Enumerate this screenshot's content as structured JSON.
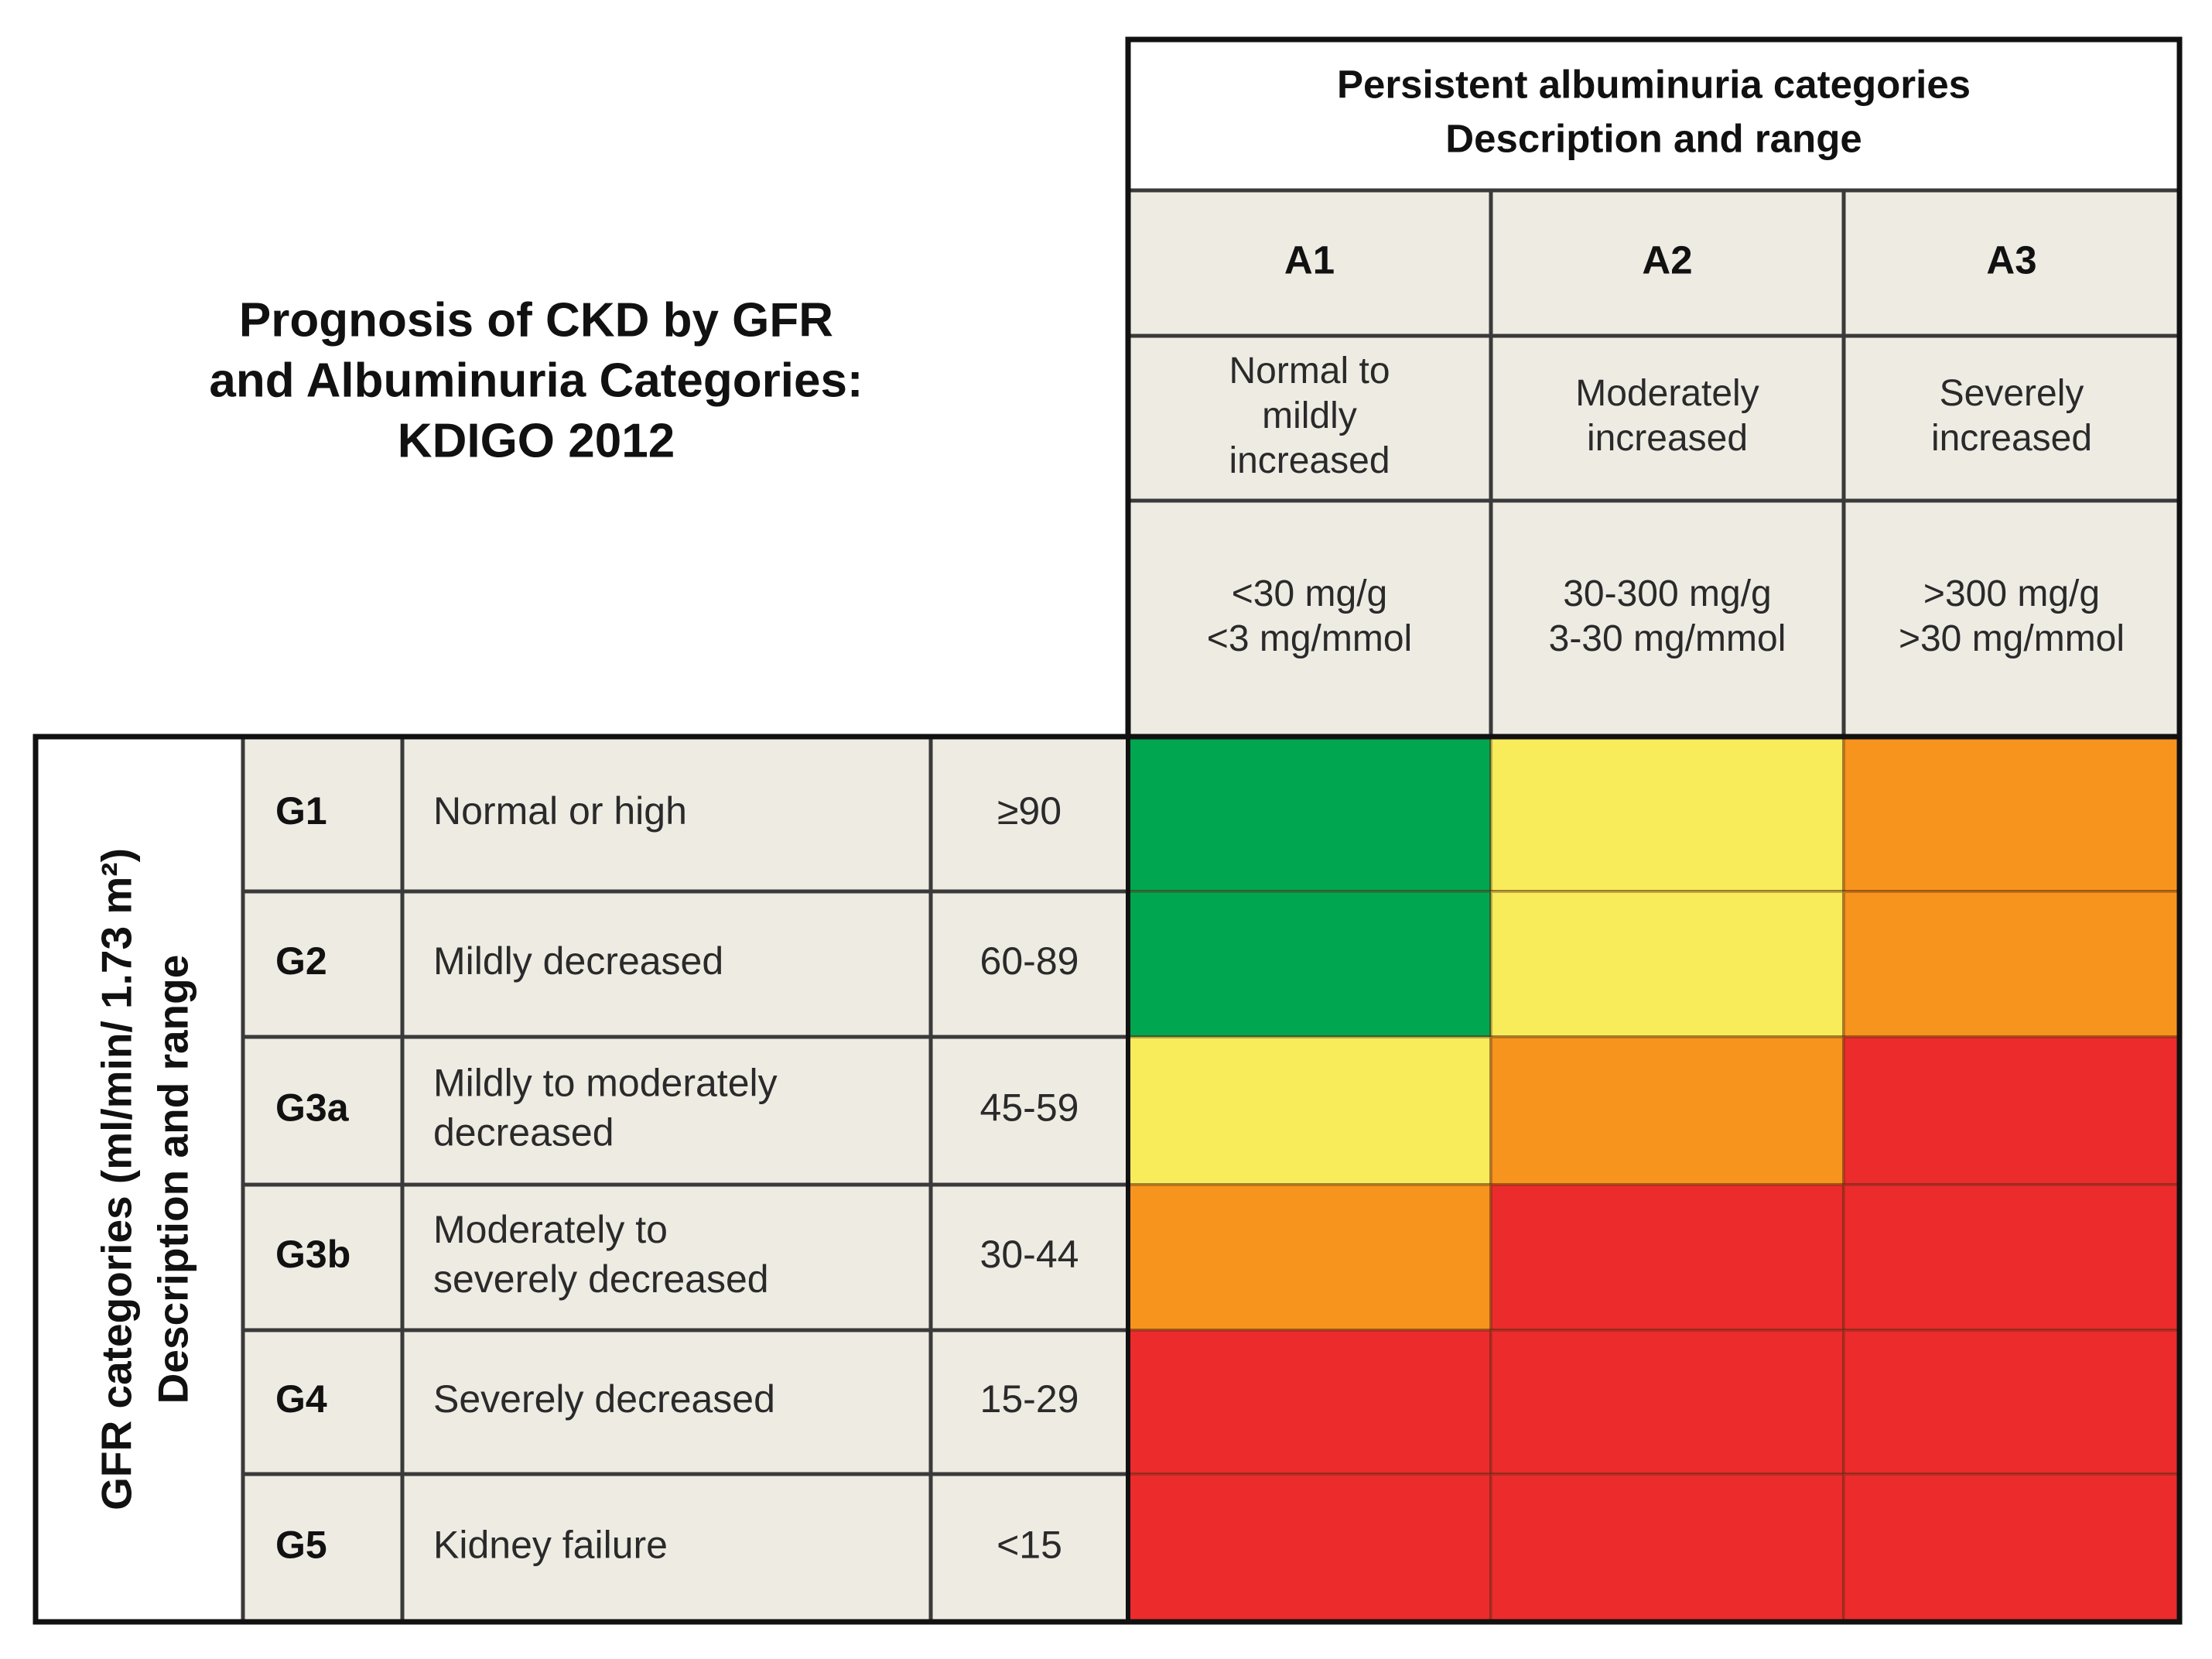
{
  "title": [
    "Prognosis of CKD by GFR",
    "and Albuminuria Categories:",
    "KDIGO 2012"
  ],
  "albuminuria": {
    "header": [
      "Persistent albuminuria categories",
      "Description and range"
    ],
    "columns": [
      {
        "code": "A1",
        "description": [
          "Normal to",
          "mildly",
          "increased"
        ],
        "range": [
          "<30 mg/g",
          "<3 mg/mmol"
        ]
      },
      {
        "code": "A2",
        "description": [
          "Moderately",
          "increased"
        ],
        "range": [
          "30-300 mg/g",
          "3-30 mg/mmol"
        ]
      },
      {
        "code": "A3",
        "description": [
          "Severely",
          "increased"
        ],
        "range": [
          ">300 mg/g",
          ">30 mg/mmol"
        ]
      }
    ]
  },
  "gfr": {
    "header": [
      "GFR categories (ml/min/ 1.73 m²)",
      "Description and range"
    ],
    "rows": [
      {
        "code": "G1",
        "description": [
          "Normal or high"
        ],
        "range": "≥90"
      },
      {
        "code": "G2",
        "description": [
          "Mildly decreased"
        ],
        "range": "60-89"
      },
      {
        "code": "G3a",
        "description": [
          "Mildly to moderately",
          "decreased"
        ],
        "range": "45-59"
      },
      {
        "code": "G3b",
        "description": [
          "Moderately to",
          "severely decreased"
        ],
        "range": "30-44"
      },
      {
        "code": "G4",
        "description": [
          "Severely decreased"
        ],
        "range": "15-29"
      },
      {
        "code": "G5",
        "description": [
          "Kidney failure"
        ],
        "range": "<15"
      }
    ]
  },
  "grid_colors": [
    [
      "#00a650",
      "#f8ec5a",
      "#f7941d"
    ],
    [
      "#00a650",
      "#f8ec5a",
      "#f7941d"
    ],
    [
      "#f8ec5a",
      "#f7941d",
      "#ec2b2c"
    ],
    [
      "#f7941d",
      "#ec2b2c",
      "#ec2b2c"
    ],
    [
      "#ec2b2c",
      "#ec2b2c",
      "#ec2b2c"
    ],
    [
      "#ec2b2c",
      "#ec2b2c",
      "#ec2b2c"
    ]
  ]
}
